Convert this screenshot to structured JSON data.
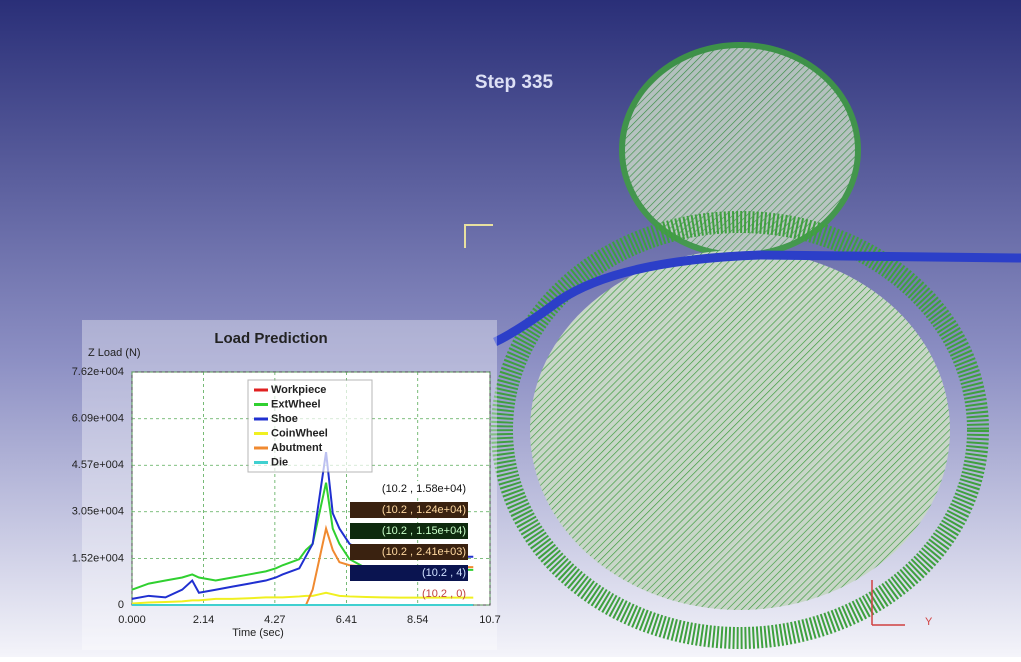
{
  "step_label": "Step 335",
  "triad_label": "Y",
  "chart_data": {
    "type": "line",
    "title": "Load Prediction",
    "y_label": "Z Load (N)",
    "x_label": "Time (sec)",
    "x": [
      0,
      0.5,
      1,
      1.5,
      1.8,
      2.0,
      2.5,
      3.0,
      3.5,
      4.0,
      4.3,
      4.5,
      5.0,
      5.2,
      5.4,
      5.6,
      5.8,
      6.0,
      6.2,
      6.5,
      7.0,
      7.5,
      8.0,
      8.5,
      9.0,
      9.5,
      10.2
    ],
    "series": [
      {
        "name": "Workpiece",
        "color": "#e02020",
        "values": [
          0,
          0,
          0,
          0,
          0,
          0,
          0,
          0,
          0,
          0,
          0,
          0,
          0,
          0,
          0,
          0,
          0,
          0,
          0,
          0,
          0,
          0,
          0,
          0,
          0,
          0,
          4
        ]
      },
      {
        "name": "ExtWheel",
        "color": "#30d030",
        "values": [
          5000,
          7000,
          8000,
          9000,
          10000,
          9000,
          8000,
          9000,
          10000,
          11000,
          12000,
          13000,
          15000,
          18000,
          20000,
          30000,
          40000,
          25000,
          20000,
          15000,
          12000,
          11000,
          11500,
          11500,
          11500,
          11500,
          11500
        ]
      },
      {
        "name": "Shoe",
        "color": "#2030d0",
        "values": [
          2000,
          3000,
          2500,
          5000,
          8000,
          4000,
          5000,
          6000,
          7000,
          8000,
          9000,
          10000,
          12000,
          16000,
          20000,
          35000,
          50000,
          30000,
          25000,
          20000,
          17000,
          16000,
          15500,
          15500,
          15800,
          15800,
          15800
        ]
      },
      {
        "name": "CoinWheel",
        "color": "#f0f020",
        "values": [
          500,
          800,
          1000,
          1200,
          1500,
          1500,
          2000,
          2000,
          2200,
          2500,
          2500,
          2500,
          2800,
          3000,
          3000,
          3500,
          4000,
          3500,
          3000,
          2800,
          2600,
          2500,
          2400,
          2400,
          2400,
          2400,
          2410
        ]
      },
      {
        "name": "Abutment",
        "color": "#f08a30",
        "values": [
          0,
          0,
          0,
          0,
          0,
          0,
          0,
          0,
          0,
          0,
          0,
          0,
          0,
          0,
          5000,
          15000,
          25000,
          18000,
          14000,
          13000,
          12500,
          12400,
          12400,
          12400,
          12400,
          12400,
          12400
        ]
      },
      {
        "name": "Die",
        "color": "#40d0d0",
        "values": [
          0,
          0,
          0,
          0,
          0,
          0,
          0,
          0,
          0,
          0,
          0,
          0,
          0,
          0,
          0,
          0,
          0,
          0,
          0,
          0,
          0,
          0,
          0,
          0,
          0,
          0,
          0
        ]
      }
    ],
    "xlim": [
      0,
      10.7
    ],
    "xticks": [
      {
        "value": 0,
        "label": "0.000"
      },
      2.14,
      4.27,
      6.41,
      8.54,
      10.7
    ],
    "ylim": [
      0,
      76200
    ],
    "yticks": [
      0,
      {
        "value": 15200,
        "label": "1.52e+004"
      },
      {
        "value": 30500,
        "label": "3.05e+004"
      },
      {
        "value": 45700,
        "label": "4.57e+004"
      },
      {
        "value": 60900,
        "label": "6.09e+004"
      },
      {
        "value": 76200,
        "label": "7.62e+004"
      }
    ],
    "grid": true,
    "annotations": [
      "(10.2 , 1.58e+04)",
      "(10.2 , 1.24e+04)",
      "(10.2 , 1.15e+04)",
      "(10.2 , 2.41e+03)",
      "(10.2 , 4)",
      "(10.2 , 0)"
    ]
  }
}
